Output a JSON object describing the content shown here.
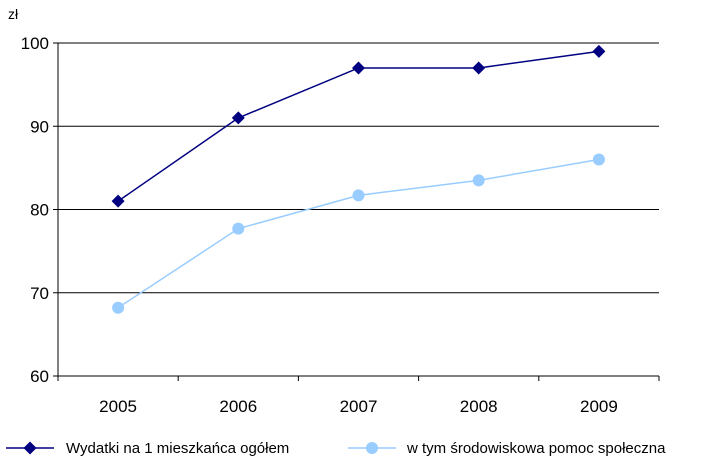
{
  "chart_data": {
    "type": "line",
    "y_unit_label": "zł",
    "categories": [
      "2005",
      "2006",
      "2007",
      "2008",
      "2009"
    ],
    "ylim": [
      60,
      100
    ],
    "yticks": [
      60,
      70,
      80,
      90,
      100
    ],
    "grid": "horizontal",
    "legend_position": "bottom",
    "series": [
      {
        "name": "Wydatki na 1 mieszkańca ogółem",
        "values": [
          81,
          91,
          97,
          97,
          99
        ],
        "color": "#000080",
        "marker": "diamond"
      },
      {
        "name": "w tym środowiskowa pomoc społeczna",
        "values": [
          68.2,
          77.7,
          81.7,
          83.5,
          86
        ],
        "color": "#99ccff",
        "marker": "circle"
      }
    ]
  }
}
